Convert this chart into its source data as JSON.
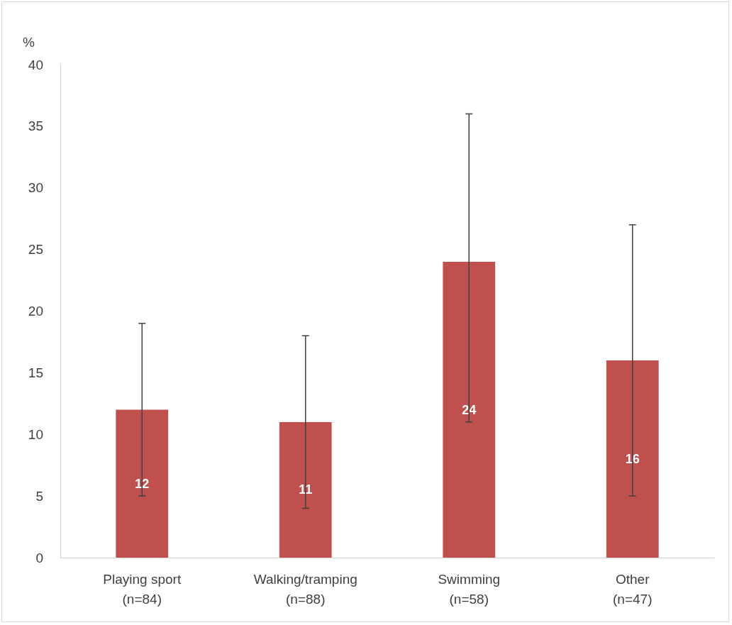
{
  "chart_data": {
    "type": "bar",
    "ylabel": "%",
    "categories": [
      "Playing sport\n(n=84)",
      "Walking/tramping\n(n=88)",
      "Swimming\n(n=58)",
      "Other\n(n=47)"
    ],
    "values": [
      12,
      11,
      24,
      16
    ],
    "errors": [
      [
        5,
        19
      ],
      [
        4,
        18
      ],
      [
        11,
        36
      ],
      [
        5,
        27
      ]
    ],
    "color": "#c0504d",
    "ylim": [
      0,
      40
    ],
    "yticks": [
      0,
      5,
      10,
      15,
      20,
      25,
      30,
      35,
      40
    ],
    "data_labels": true,
    "grid": false
  }
}
